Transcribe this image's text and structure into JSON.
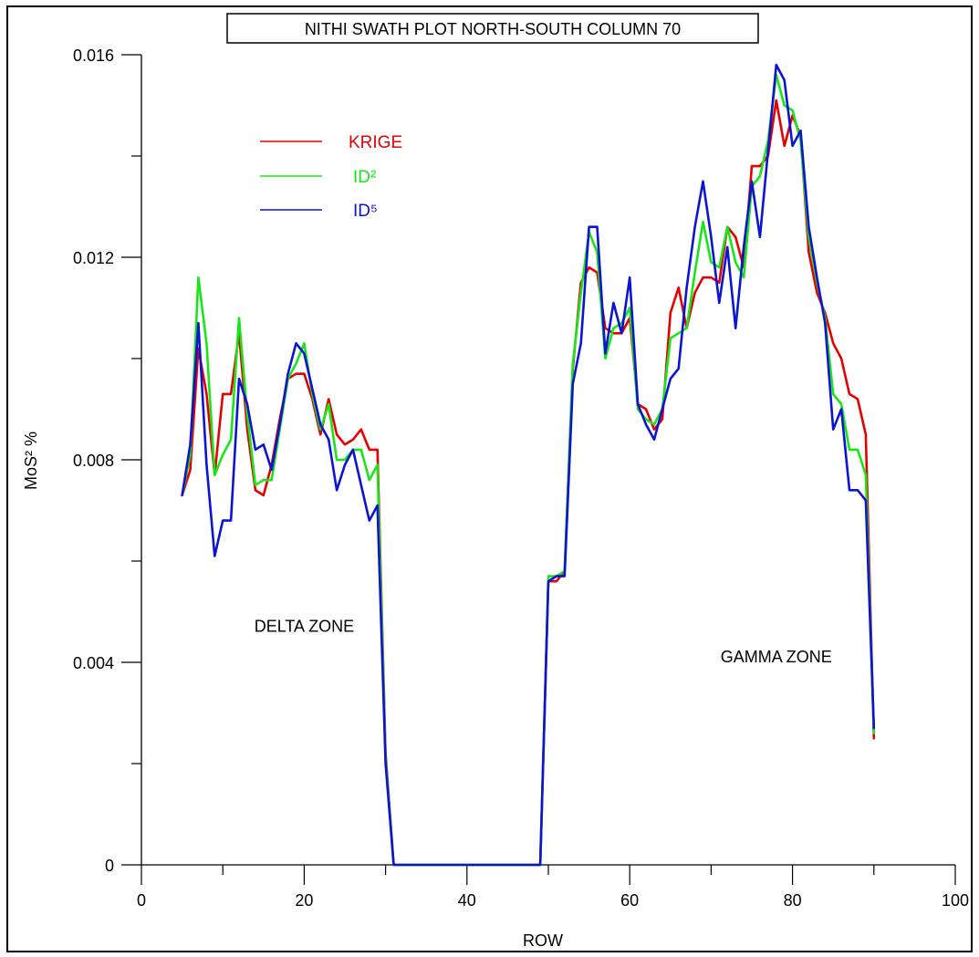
{
  "chart_data": {
    "type": "line",
    "title": "NITHI SWATH PLOT NORTH-SOUTH COLUMN 70",
    "xlabel": "ROW",
    "ylabel": "MoS² %",
    "xlim": [
      0,
      100
    ],
    "ylim": [
      0,
      0.016
    ],
    "x_ticks": [
      "0",
      "20",
      "40",
      "60",
      "80",
      "100"
    ],
    "y_ticks": [
      "0",
      "0.004",
      "0.008",
      "0.012",
      "0.016"
    ],
    "legend_position": "top-left",
    "legend": [
      {
        "label": "KRIGE",
        "color": "#e60000"
      },
      {
        "label": "ID²",
        "color": "#19e619"
      },
      {
        "label": "ID⁵",
        "color": "#0a14d2"
      }
    ],
    "annotations": [
      {
        "text": "DELTA ZONE",
        "x": 20,
        "y": 0.0046
      },
      {
        "text": "GAMMA ZONE",
        "x": 78,
        "y": 0.004
      }
    ],
    "x": [
      5,
      6,
      7,
      8,
      9,
      10,
      11,
      12,
      13,
      14,
      15,
      16,
      17,
      18,
      19,
      20,
      21,
      22,
      23,
      24,
      25,
      26,
      27,
      28,
      29,
      30,
      31,
      32,
      33,
      34,
      35,
      36,
      37,
      38,
      39,
      40,
      41,
      42,
      43,
      44,
      45,
      46,
      47,
      48,
      49,
      50,
      51,
      52,
      53,
      54,
      55,
      56,
      57,
      58,
      59,
      60,
      61,
      62,
      63,
      64,
      65,
      66,
      67,
      68,
      69,
      70,
      71,
      72,
      73,
      74,
      75,
      76,
      77,
      78,
      79,
      80,
      81,
      82,
      83,
      84,
      85,
      86,
      87,
      88,
      89,
      90
    ],
    "series": [
      {
        "name": "KRIGE",
        "color": "#e60000",
        "values": [
          0.0073,
          0.0078,
          0.0102,
          0.0093,
          0.0077,
          0.0093,
          0.0093,
          0.0105,
          0.0086,
          0.0074,
          0.0073,
          0.0079,
          0.0088,
          0.0096,
          0.0097,
          0.0097,
          0.0092,
          0.0085,
          0.0092,
          0.0085,
          0.0083,
          0.0084,
          0.0086,
          0.0082,
          0.0082,
          0.0022,
          0.0,
          0.0,
          0.0,
          0.0,
          0.0,
          0.0,
          0.0,
          0.0,
          0.0,
          0.0,
          0.0,
          0.0,
          0.0,
          0.0,
          0.0,
          0.0,
          0.0,
          0.0,
          0.0,
          0.0056,
          0.0056,
          0.0058,
          0.0098,
          0.0115,
          0.0118,
          0.0117,
          0.0106,
          0.0105,
          0.0105,
          0.0108,
          0.0091,
          0.009,
          0.0086,
          0.0088,
          0.0109,
          0.0114,
          0.0106,
          0.0113,
          0.0116,
          0.0116,
          0.0115,
          0.0126,
          0.0124,
          0.0118,
          0.0138,
          0.0138,
          0.014,
          0.0151,
          0.0142,
          0.0148,
          0.0144,
          0.0121,
          0.0113,
          0.0109,
          0.0103,
          0.01,
          0.0093,
          0.0092,
          0.0085,
          0.0025
        ]
      },
      {
        "name": "ID²",
        "color": "#19e619",
        "values": [
          0.0073,
          0.0081,
          0.0116,
          0.0103,
          0.0077,
          0.0081,
          0.0084,
          0.0108,
          0.0089,
          0.0075,
          0.0076,
          0.0076,
          0.0086,
          0.0096,
          0.0099,
          0.0103,
          0.0093,
          0.0086,
          0.0091,
          0.008,
          0.008,
          0.0082,
          0.0082,
          0.0076,
          0.0079,
          0.0021,
          0.0,
          0.0,
          0.0,
          0.0,
          0.0,
          0.0,
          0.0,
          0.0,
          0.0,
          0.0,
          0.0,
          0.0,
          0.0,
          0.0,
          0.0,
          0.0,
          0.0,
          0.0,
          0.0,
          0.0057,
          0.0057,
          0.0058,
          0.0099,
          0.0113,
          0.0125,
          0.0121,
          0.01,
          0.0106,
          0.0107,
          0.011,
          0.009,
          0.0088,
          0.0087,
          0.009,
          0.0104,
          0.0105,
          0.0106,
          0.0117,
          0.0127,
          0.0119,
          0.0118,
          0.0126,
          0.0119,
          0.0116,
          0.0134,
          0.0136,
          0.0143,
          0.0156,
          0.015,
          0.0149,
          0.0143,
          0.0124,
          0.0115,
          0.0108,
          0.0093,
          0.0091,
          0.0082,
          0.0082,
          0.0077,
          0.0026
        ]
      },
      {
        "name": "ID⁵",
        "color": "#0a14d2",
        "values": [
          0.0073,
          0.0083,
          0.0107,
          0.0079,
          0.0061,
          0.0068,
          0.0068,
          0.0096,
          0.0091,
          0.0082,
          0.0083,
          0.0078,
          0.0087,
          0.0097,
          0.0103,
          0.0101,
          0.0094,
          0.0087,
          0.0084,
          0.0074,
          0.0079,
          0.0082,
          0.0075,
          0.0068,
          0.0071,
          0.002,
          0.0,
          0.0,
          0.0,
          0.0,
          0.0,
          0.0,
          0.0,
          0.0,
          0.0,
          0.0,
          0.0,
          0.0,
          0.0,
          0.0,
          0.0,
          0.0,
          0.0,
          0.0,
          0.0,
          0.0056,
          0.0057,
          0.0057,
          0.0095,
          0.0103,
          0.0126,
          0.0126,
          0.0101,
          0.0111,
          0.0105,
          0.0116,
          0.0091,
          0.0087,
          0.0084,
          0.009,
          0.0096,
          0.0098,
          0.0114,
          0.0126,
          0.0135,
          0.0124,
          0.0111,
          0.0122,
          0.0106,
          0.0122,
          0.0135,
          0.0124,
          0.0141,
          0.0158,
          0.0155,
          0.0142,
          0.0145,
          0.0126,
          0.0116,
          0.0107,
          0.0086,
          0.009,
          0.0074,
          0.0074,
          0.0072,
          0.0027
        ]
      }
    ]
  }
}
